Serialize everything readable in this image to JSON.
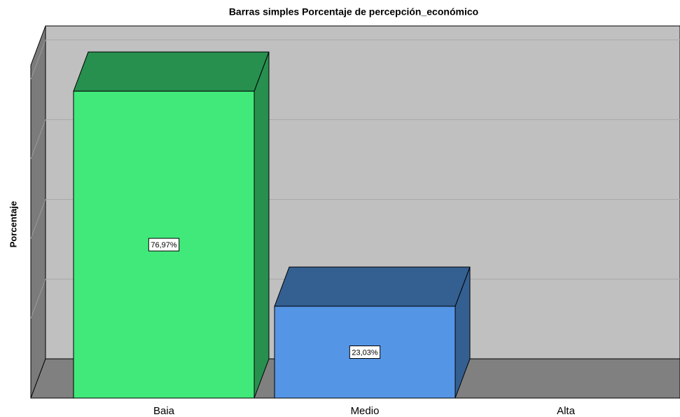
{
  "chart_data": {
    "type": "bar3d",
    "title": "Barras simples Porcentaje de percepción_económico",
    "y_label": "Porcentaje",
    "categories": [
      "Baia",
      "Medio",
      "Alta"
    ],
    "values": [
      76.97,
      23.03,
      0
    ],
    "value_labels": [
      "76,97%",
      "23,03%",
      null
    ],
    "colors": [
      "#41e97a",
      "#5595e6",
      "#5595e6"
    ],
    "side_colors": [
      "#27904f",
      "#345f91",
      "#345f91"
    ],
    "ylim": [
      0,
      83.5
    ],
    "yticks": [
      0,
      20,
      40,
      60,
      80
    ],
    "grid": true
  }
}
